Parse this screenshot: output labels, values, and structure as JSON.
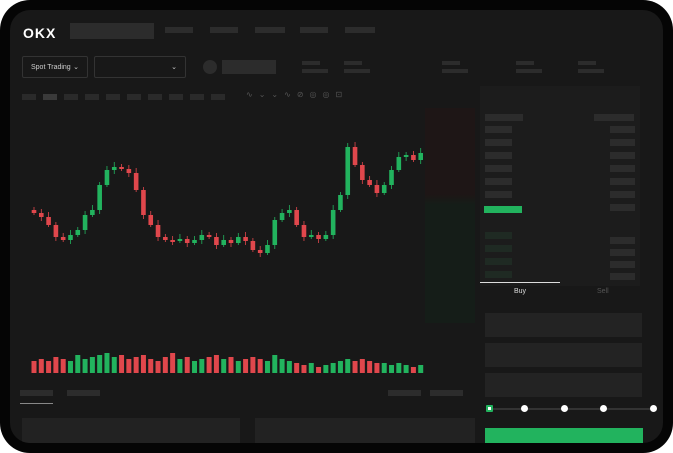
{
  "header": {
    "logo": "OKX"
  },
  "toolbar": {
    "market_select": "Spot Trading"
  },
  "trade": {
    "tabs": [
      "Buy",
      "Sell"
    ],
    "active_tab": "Buy",
    "slider_level_percent": 0,
    "slider_stops": 5
  },
  "colors": {
    "up": "#22b35e",
    "down": "#e0474c",
    "background": "#181818"
  },
  "icons": {
    "orderbook_modes": [
      "orderbook-both-icon",
      "orderbook-bids-icon",
      "orderbook-asks-icon"
    ]
  },
  "chart_data": {
    "type": "candlestick",
    "axes_labeled": false,
    "closes": [
      52,
      48,
      40,
      28,
      25,
      30,
      35,
      50,
      55,
      80,
      95,
      98,
      96,
      92,
      75,
      50,
      40,
      28,
      25,
      24,
      26,
      22,
      25,
      30,
      28,
      20,
      25,
      22,
      28,
      24,
      15,
      12,
      20,
      45,
      52,
      55,
      40,
      28,
      30,
      26,
      30,
      55,
      70,
      118,
      100,
      85,
      80,
      72,
      80,
      95,
      108,
      110,
      105,
      112,
      108
    ],
    "volumes": [
      6,
      7,
      6,
      8,
      7,
      6,
      9,
      7,
      8,
      9,
      10,
      8,
      9,
      7,
      8,
      9,
      7,
      6,
      8,
      10,
      7,
      8,
      6,
      7,
      8,
      9,
      7,
      8,
      6,
      7,
      8,
      7,
      6,
      9,
      7,
      6,
      5,
      4,
      5,
      3,
      4,
      5,
      6,
      7,
      6,
      7,
      6,
      5,
      5,
      4,
      5,
      4,
      3,
      4,
      3
    ]
  }
}
